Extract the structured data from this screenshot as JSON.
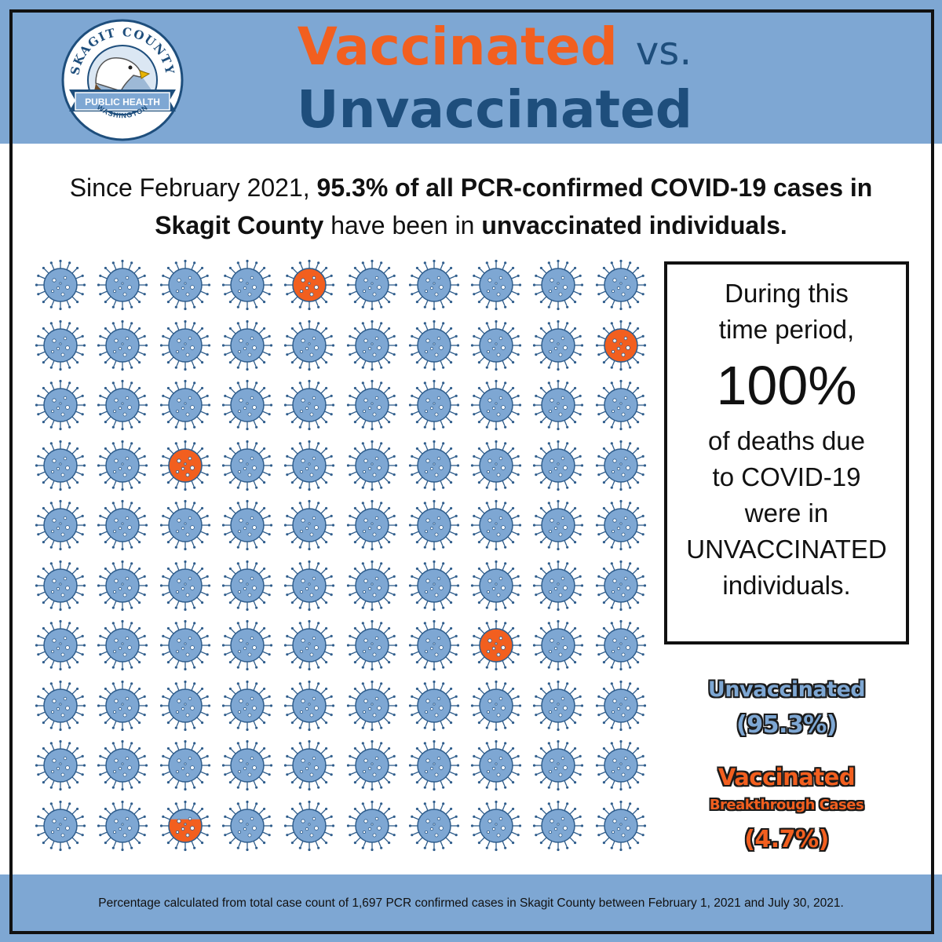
{
  "title": {
    "vaccinated": "Vaccinated",
    "vs": "vs.",
    "unvaccinated": "Unvaccinated"
  },
  "logo": {
    "icon": "skagit-county-seal-icon",
    "text_top": "SKAGIT COUNTY",
    "text_banner": "PUBLIC HEALTH",
    "text_bottom": "WASHINGTON"
  },
  "intro": {
    "part1": "Since February 2021, ",
    "part2_bold": "95.3% of all PCR-confirmed COVID-19 cases in Skagit County",
    "part3": " have been in ",
    "part4_bold": "unvaccinated individuals."
  },
  "death_box": {
    "line1": "During this",
    "line2": "time period,",
    "percent": "100%",
    "line3": "of deaths due",
    "line4": "to COVID-19",
    "line5": "were in",
    "line6": "UNVACCINATED",
    "line7": "individuals."
  },
  "legend": {
    "unvaccinated_label": "Unvaccinated",
    "unvaccinated_pct": "(95.3%)",
    "vaccinated_label": "Vaccinated",
    "vaccinated_sub": "Breakthrough Cases",
    "vaccinated_pct": "(4.7%)"
  },
  "footnote": "Percentage calculated from total case count of 1,697 PCR confirmed cases in Skagit County between February  1, 2021 and July 30, 2021.",
  "chart_data": {
    "type": "waffle",
    "rows": 10,
    "cols": 10,
    "icon": "virus-icon",
    "series": [
      {
        "name": "Unvaccinated",
        "value_percent": 95.3,
        "color": "#7ea7d3"
      },
      {
        "name": "Vaccinated",
        "value_percent": 4.7,
        "color": "#f25f1f"
      }
    ],
    "highlighted_cells": [
      {
        "row": 1,
        "col": 5,
        "fill_fraction": 1.0
      },
      {
        "row": 2,
        "col": 10,
        "fill_fraction": 1.0
      },
      {
        "row": 4,
        "col": 3,
        "fill_fraction": 1.0
      },
      {
        "row": 7,
        "col": 8,
        "fill_fraction": 1.0
      },
      {
        "row": 10,
        "col": 3,
        "fill_fraction": 0.7
      }
    ]
  },
  "colors": {
    "band": "#7ea7d3",
    "orange": "#f25f1f",
    "navy": "#1e4e7c",
    "virus_blue": "#7ea7d3",
    "virus_stroke": "#2f5d8c"
  }
}
